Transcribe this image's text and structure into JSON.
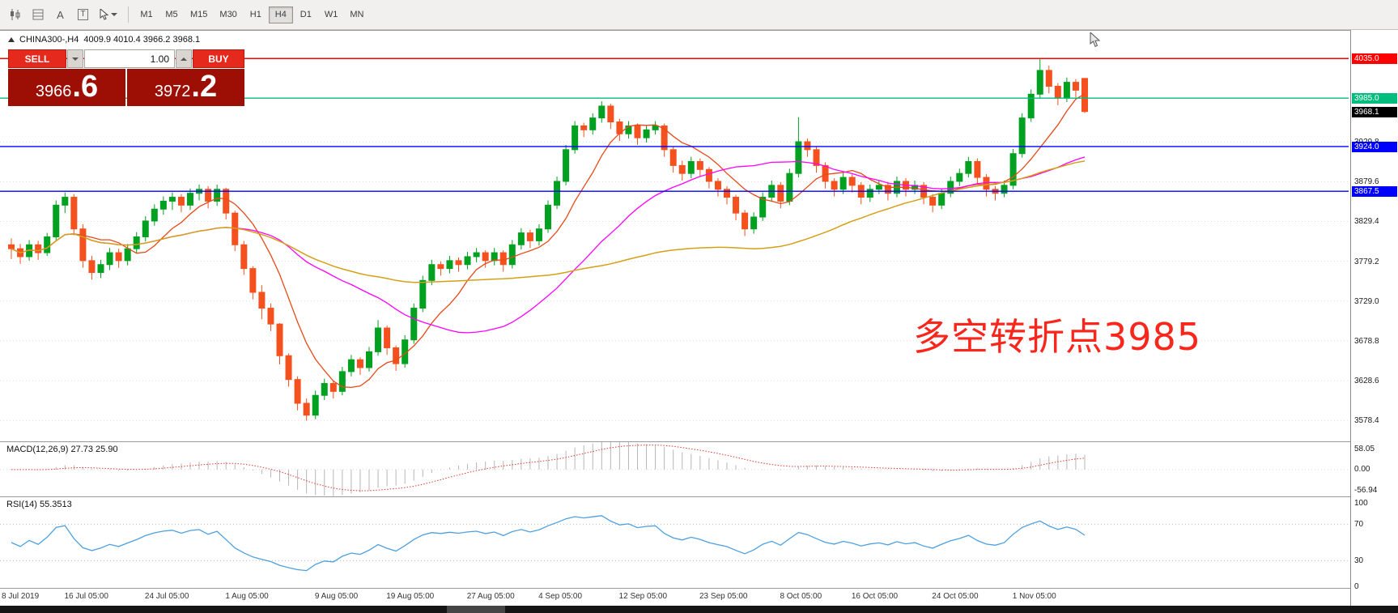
{
  "toolbar": {
    "tools": [
      {
        "name": "chart-candles-tool",
        "glyph": ""
      },
      {
        "name": "grid-list-tool",
        "glyph": ""
      },
      {
        "name": "text-label-tool",
        "glyph": "A"
      },
      {
        "name": "template-tool",
        "glyph": "T"
      },
      {
        "name": "cursor-tool",
        "glyph": ""
      }
    ],
    "timeframes": [
      "M1",
      "M5",
      "M15",
      "M30",
      "H1",
      "H4",
      "D1",
      "W1",
      "MN"
    ],
    "active_timeframe": "H4"
  },
  "trade_panel": {
    "sell_label": "SELL",
    "buy_label": "BUY",
    "volume": "1.00",
    "sell_price_int": "3966",
    "sell_price_frac": ".6",
    "buy_price_int": "3972",
    "buy_price_frac": ".2"
  },
  "chart": {
    "symbol_title": "CHINA300-,H4",
    "ohlc_readout": "4009.9 4010.4 3966.2 3968.1",
    "annotation": "多空转折点3985",
    "current_price": 3968.1,
    "current_price_label": "3968.1",
    "levels": [
      {
        "price": 4035.0,
        "label": "4035.0",
        "color": "#ff0000"
      },
      {
        "price": 3985.0,
        "label": "3985.0",
        "color": "#00bd7d"
      },
      {
        "price": 3924.0,
        "label": "3924.0",
        "color": "#0000ff"
      },
      {
        "price": 3867.5,
        "label": "3867.5",
        "color": "#0000ff"
      }
    ],
    "y_ticks": [
      {
        "price": 3929.8,
        "label": "3929.8"
      },
      {
        "price": 3879.6,
        "label": "3879.6"
      },
      {
        "price": 3829.4,
        "label": "3829.4"
      },
      {
        "price": 3779.2,
        "label": "3779.2"
      },
      {
        "price": 3729.0,
        "label": "3729.0"
      },
      {
        "price": 3678.8,
        "label": "3678.8"
      },
      {
        "price": 3628.6,
        "label": "3628.6"
      },
      {
        "price": 3578.4,
        "label": "3578.4"
      }
    ],
    "x_ticks": [
      {
        "i": 0,
        "label": "8 Jul 2019"
      },
      {
        "i": 9,
        "label": "16 Jul 05:00"
      },
      {
        "i": 18,
        "label": "24 Jul 05:00"
      },
      {
        "i": 27,
        "label": "1 Aug 05:00"
      },
      {
        "i": 37,
        "label": "9 Aug 05:00"
      },
      {
        "i": 45,
        "label": "19 Aug 05:00"
      },
      {
        "i": 54,
        "label": "27 Aug 05:00"
      },
      {
        "i": 62,
        "label": "4 Sep 05:00"
      },
      {
        "i": 71,
        "label": "12 Sep 05:00"
      },
      {
        "i": 80,
        "label": "23 Sep 05:00"
      },
      {
        "i": 89,
        "label": "8 Oct 05:00"
      },
      {
        "i": 97,
        "label": "16 Oct 05:00"
      },
      {
        "i": 106,
        "label": "24 Oct 05:00"
      },
      {
        "i": 115,
        "label": "1 Nov 05:00"
      }
    ]
  },
  "macd_panel": {
    "label": "MACD(12,26,9) 27.73 25.90",
    "axis_labels": [
      "58.05",
      "0.00",
      "-56.94"
    ],
    "axis_max": 58.05,
    "axis_min": -56.94
  },
  "rsi_panel": {
    "label": "RSI(14) 55.3513",
    "axis_labels": [
      "100",
      "70",
      "30",
      "0"
    ],
    "level_lines": [
      70,
      30
    ]
  },
  "chart_data": {
    "type": "candlestick",
    "symbol": "CHINA300-",
    "timeframe": "H4",
    "title": "CHINA300-,H4 4009.9 4010.4 3966.2 3968.1",
    "price_range": [
      3552,
      4070
    ],
    "up_color": "#00a020",
    "down_color": "#f4511e",
    "ma_fast_color": "#e64a19",
    "ma_mid_color": "#ff00ff",
    "ma_slow_color": "#d4a017",
    "ma_periods": [
      8,
      26,
      60
    ],
    "macd_settings": [
      12,
      26,
      9
    ],
    "rsi_period": 14,
    "ohlc": [
      [
        3800,
        3808,
        3782,
        3795
      ],
      [
        3795,
        3801,
        3776,
        3785
      ],
      [
        3785,
        3806,
        3780,
        3800
      ],
      [
        3800,
        3805,
        3781,
        3790
      ],
      [
        3790,
        3815,
        3786,
        3810
      ],
      [
        3810,
        3856,
        3806,
        3850
      ],
      [
        3850,
        3866,
        3840,
        3860
      ],
      [
        3860,
        3864,
        3812,
        3820
      ],
      [
        3820,
        3826,
        3771,
        3780
      ],
      [
        3780,
        3786,
        3756,
        3765
      ],
      [
        3765,
        3781,
        3758,
        3775
      ],
      [
        3775,
        3796,
        3768,
        3790
      ],
      [
        3790,
        3795,
        3771,
        3780
      ],
      [
        3780,
        3801,
        3774,
        3795
      ],
      [
        3795,
        3816,
        3789,
        3810
      ],
      [
        3810,
        3836,
        3804,
        3830
      ],
      [
        3830,
        3851,
        3824,
        3845
      ],
      [
        3845,
        3861,
        3838,
        3855
      ],
      [
        3855,
        3866,
        3844,
        3860
      ],
      [
        3860,
        3864,
        3841,
        3850
      ],
      [
        3850,
        3871,
        3844,
        3865
      ],
      [
        3865,
        3876,
        3856,
        3870
      ],
      [
        3870,
        3874,
        3846,
        3855
      ],
      [
        3855,
        3876,
        3849,
        3870
      ],
      [
        3870,
        3872,
        3832,
        3840
      ],
      [
        3840,
        3843,
        3792,
        3800
      ],
      [
        3800,
        3805,
        3762,
        3770
      ],
      [
        3770,
        3773,
        3731,
        3740
      ],
      [
        3740,
        3749,
        3706,
        3720
      ],
      [
        3720,
        3726,
        3691,
        3700
      ],
      [
        3700,
        3701,
        3649,
        3660
      ],
      [
        3660,
        3663,
        3621,
        3630
      ],
      [
        3630,
        3634,
        3591,
        3600
      ],
      [
        3600,
        3606,
        3578,
        3585
      ],
      [
        3585,
        3616,
        3580,
        3610
      ],
      [
        3610,
        3631,
        3604,
        3625
      ],
      [
        3625,
        3629,
        3606,
        3615
      ],
      [
        3615,
        3646,
        3610,
        3640
      ],
      [
        3640,
        3661,
        3634,
        3655
      ],
      [
        3655,
        3658,
        3636,
        3645
      ],
      [
        3645,
        3671,
        3640,
        3665
      ],
      [
        3665,
        3705,
        3660,
        3695
      ],
      [
        3695,
        3698,
        3661,
        3670
      ],
      [
        3670,
        3673,
        3641,
        3650
      ],
      [
        3650,
        3686,
        3645,
        3680
      ],
      [
        3680,
        3726,
        3675,
        3720
      ],
      [
        3720,
        3761,
        3715,
        3755
      ],
      [
        3755,
        3781,
        3749,
        3775
      ],
      [
        3775,
        3779,
        3761,
        3770
      ],
      [
        3770,
        3786,
        3764,
        3780
      ],
      [
        3780,
        3784,
        3766,
        3775
      ],
      [
        3775,
        3791,
        3769,
        3785
      ],
      [
        3785,
        3796,
        3778,
        3790
      ],
      [
        3790,
        3793,
        3771,
        3780
      ],
      [
        3780,
        3796,
        3774,
        3790
      ],
      [
        3790,
        3793,
        3766,
        3775
      ],
      [
        3775,
        3806,
        3770,
        3800
      ],
      [
        3800,
        3821,
        3794,
        3815
      ],
      [
        3815,
        3819,
        3796,
        3805
      ],
      [
        3805,
        3826,
        3799,
        3820
      ],
      [
        3820,
        3856,
        3815,
        3850
      ],
      [
        3850,
        3886,
        3845,
        3880
      ],
      [
        3880,
        3926,
        3875,
        3920
      ],
      [
        3920,
        3956,
        3915,
        3950
      ],
      [
        3950,
        3954,
        3936,
        3945
      ],
      [
        3945,
        3966,
        3939,
        3960
      ],
      [
        3960,
        3981,
        3954,
        3975
      ],
      [
        3975,
        3978,
        3946,
        3955
      ],
      [
        3955,
        3959,
        3931,
        3940
      ],
      [
        3940,
        3956,
        3934,
        3950
      ],
      [
        3950,
        3953,
        3926,
        3935
      ],
      [
        3935,
        3951,
        3929,
        3945
      ],
      [
        3945,
        3956,
        3939,
        3950
      ],
      [
        3950,
        3953,
        3911,
        3920
      ],
      [
        3920,
        3924,
        3891,
        3900
      ],
      [
        3900,
        3906,
        3881,
        3890
      ],
      [
        3890,
        3911,
        3884,
        3905
      ],
      [
        3905,
        3909,
        3886,
        3895
      ],
      [
        3895,
        3898,
        3871,
        3880
      ],
      [
        3880,
        3884,
        3861,
        3870
      ],
      [
        3870,
        3874,
        3851,
        3860
      ],
      [
        3860,
        3863,
        3831,
        3840
      ],
      [
        3840,
        3844,
        3811,
        3820
      ],
      [
        3820,
        3841,
        3814,
        3835
      ],
      [
        3835,
        3866,
        3830,
        3860
      ],
      [
        3860,
        3881,
        3854,
        3875
      ],
      [
        3875,
        3879,
        3846,
        3855
      ],
      [
        3855,
        3896,
        3850,
        3890
      ],
      [
        3890,
        3961,
        3885,
        3930
      ],
      [
        3930,
        3934,
        3911,
        3920
      ],
      [
        3920,
        3924,
        3891,
        3900
      ],
      [
        3900,
        3904,
        3871,
        3880
      ],
      [
        3880,
        3884,
        3861,
        3870
      ],
      [
        3870,
        3891,
        3864,
        3885
      ],
      [
        3885,
        3889,
        3866,
        3875
      ],
      [
        3875,
        3879,
        3851,
        3860
      ],
      [
        3860,
        3876,
        3854,
        3870
      ],
      [
        3870,
        3881,
        3864,
        3875
      ],
      [
        3875,
        3879,
        3856,
        3865
      ],
      [
        3865,
        3886,
        3860,
        3880
      ],
      [
        3880,
        3884,
        3861,
        3870
      ],
      [
        3870,
        3881,
        3864,
        3875
      ],
      [
        3875,
        3879,
        3851,
        3860
      ],
      [
        3860,
        3864,
        3841,
        3850
      ],
      [
        3850,
        3871,
        3845,
        3865
      ],
      [
        3865,
        3886,
        3860,
        3880
      ],
      [
        3880,
        3896,
        3874,
        3890
      ],
      [
        3890,
        3911,
        3885,
        3905
      ],
      [
        3905,
        3909,
        3876,
        3885
      ],
      [
        3885,
        3889,
        3861,
        3870
      ],
      [
        3870,
        3874,
        3856,
        3865
      ],
      [
        3865,
        3881,
        3860,
        3875
      ],
      [
        3875,
        3921,
        3870,
        3915
      ],
      [
        3915,
        3966,
        3910,
        3960
      ],
      [
        3960,
        3996,
        3955,
        3990
      ],
      [
        3990,
        4035,
        3985,
        4020
      ],
      [
        4020,
        4026,
        3991,
        4000
      ],
      [
        4000,
        4004,
        3976,
        3985
      ],
      [
        3985,
        4011,
        3980,
        4005
      ],
      [
        4005,
        4009,
        3986,
        3995
      ],
      [
        4009.9,
        4010.4,
        3966.2,
        3968.1
      ]
    ]
  }
}
